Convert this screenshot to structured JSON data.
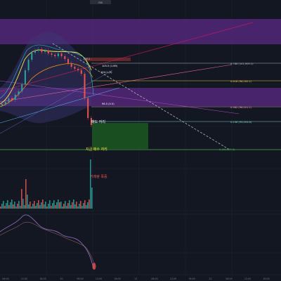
{
  "top_badge": "FIB",
  "ma_tag_price": "100.2 -",
  "price_tag_a": "105.5 (1.69)",
  "price_tag_b": "104.1 (0)",
  "price_tag_c": "98.5 (0.5)",
  "price_tag_d": "95.7 (0)",
  "annotation_sell": "매도 자리",
  "annotation_buy": "지금 매수 자리",
  "annotation_volume": "거래량 폭증",
  "fib_levels": [
    {
      "label": "0.786 (101,909.1)",
      "color": "#b2b5be"
    },
    {
      "label": "0.618 (98,165.1)",
      "color": "#e6c14f"
    },
    {
      "label": "0.382 (96,021.1)",
      "color": "#f0a0c0"
    },
    {
      "label": "0.236 (95,003.6)",
      "color": "#7dd3c0"
    },
    {
      "label": "0 (90,957.3)",
      "color": "#4caf50"
    }
  ],
  "time_axis": [
    "06:00",
    "12:00",
    "18:00",
    "20",
    "06:00",
    "12:00",
    "18:00",
    "21",
    "06:00",
    "12:00",
    "18:00",
    "22",
    "06:00",
    "12:00",
    "18:00"
  ],
  "colors": {
    "background": "#131722",
    "candle_up": "#26a69a",
    "candle_down": "#ef5350",
    "zone_purple": "#7b3fa0",
    "zone_green": "#1b5e20"
  }
}
